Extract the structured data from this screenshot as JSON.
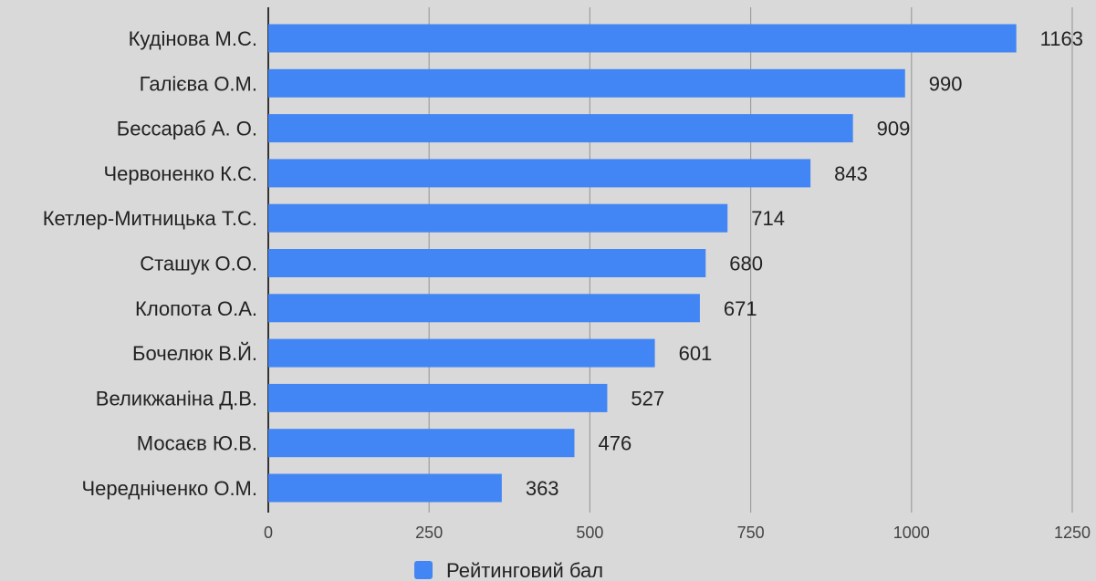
{
  "chart_data": {
    "type": "bar",
    "orientation": "horizontal",
    "categories": [
      "Кудінова М.С.",
      "Галієва О.М.",
      "Бессараб А. О.",
      "Червоненко К.С.",
      "Кетлер-Митницька Т.С.",
      "Сташук О.О.",
      "Клопота О.А.",
      "Бочелюк  В.Й.",
      "Великжаніна Д.В.",
      "Мосаєв Ю.В.",
      "Чередніченко О.М."
    ],
    "series": [
      {
        "name": "Рейтинговий бал",
        "color": "#4285f4",
        "values": [
          1163,
          990,
          909,
          843,
          714,
          680,
          671,
          601,
          527,
          476,
          363
        ]
      }
    ],
    "xlim": [
      0,
      1250
    ],
    "x_ticks": [
      0,
      250,
      500,
      750,
      1000,
      1250
    ],
    "title": "",
    "xlabel": "",
    "ylabel": "",
    "grid": "vertical",
    "legend": "bottom",
    "data_labels": true,
    "colors": {
      "background": "#d9d9d9",
      "bar": "#4285f4",
      "grid": "#9e9e9e",
      "text": "#222222"
    }
  }
}
